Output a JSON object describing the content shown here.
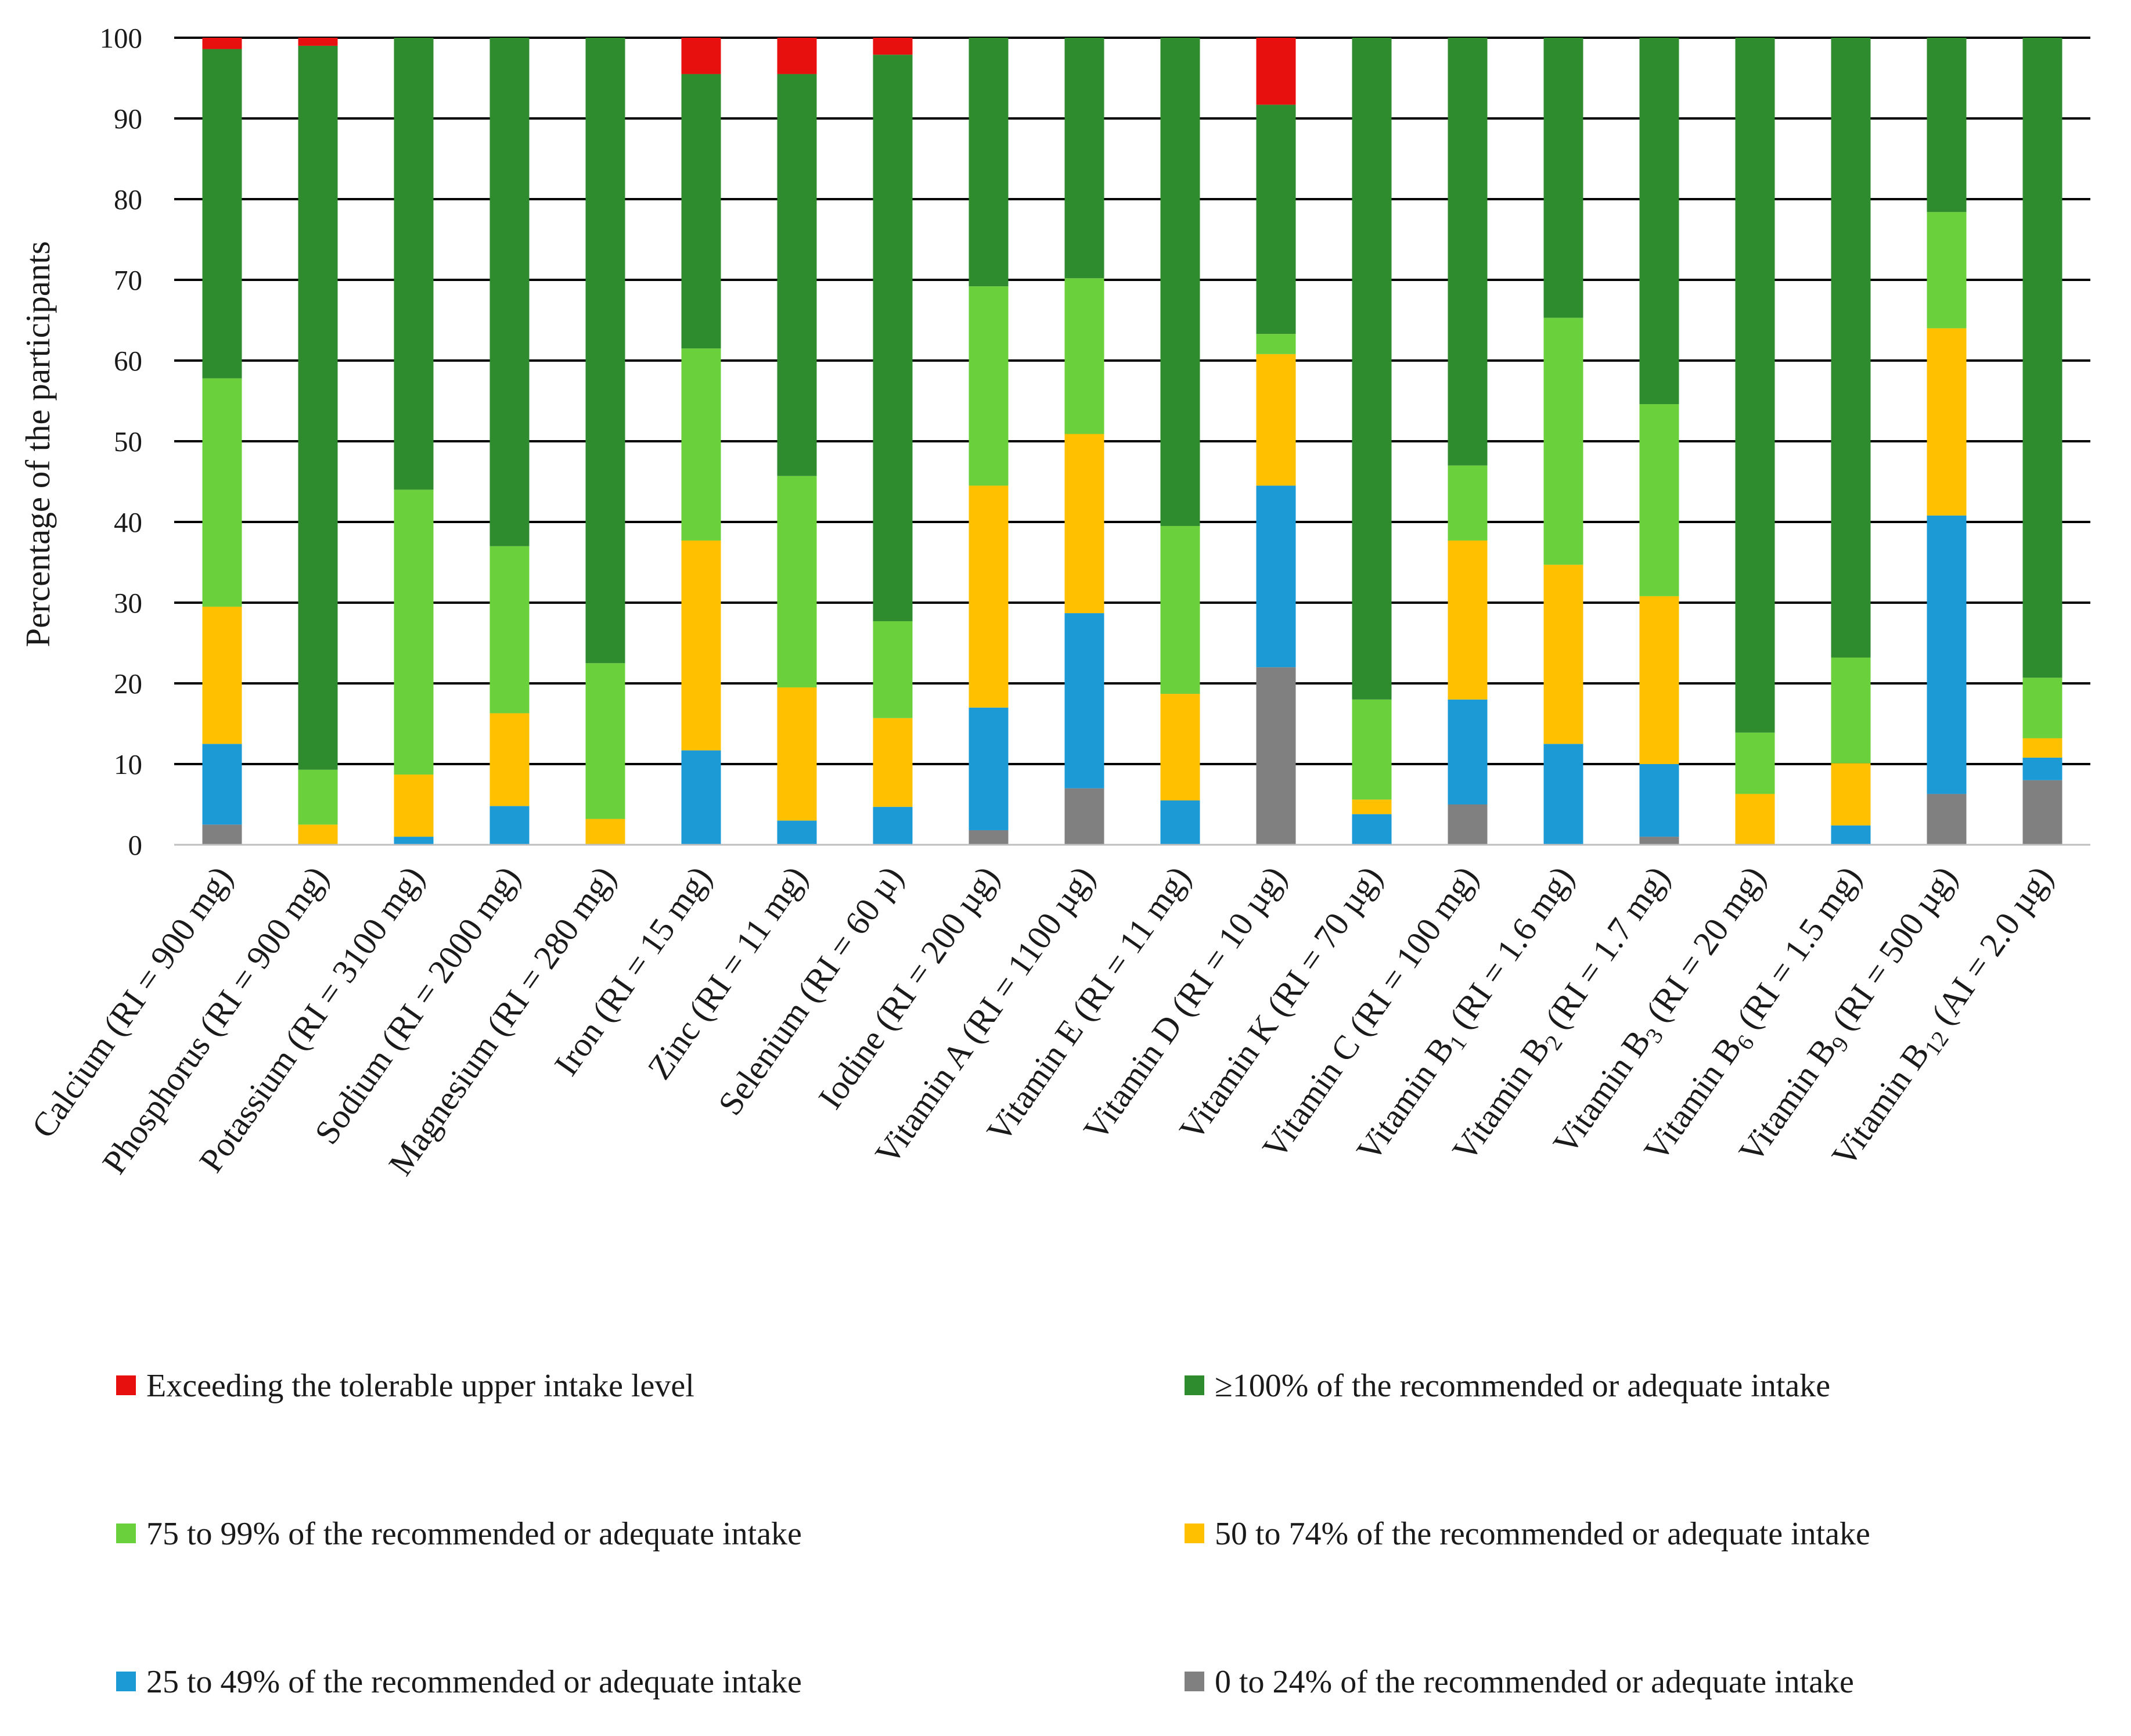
{
  "chart_data": {
    "type": "bar",
    "stacked": true,
    "title": "",
    "xlabel": "",
    "ylabel": "Percentage of the participants",
    "ylim": [
      0,
      100
    ],
    "yticks": [
      0,
      10,
      20,
      30,
      40,
      50,
      60,
      70,
      80,
      90,
      100
    ],
    "grid": true,
    "legend_position": "bottom",
    "categories": [
      {
        "pre": "Calcium (RI = 900 mg)",
        "sub": "",
        "post": ""
      },
      {
        "pre": "Phosphorus (RI = 900 mg)",
        "sub": "",
        "post": ""
      },
      {
        "pre": "Potassium (RI = 3100 mg)",
        "sub": "",
        "post": ""
      },
      {
        "pre": "Sodium (RI = 2000 mg)",
        "sub": "",
        "post": ""
      },
      {
        "pre": "Magnesium (RI = 280 mg)",
        "sub": "",
        "post": ""
      },
      {
        "pre": "Iron (RI = 15 mg)",
        "sub": "",
        "post": ""
      },
      {
        "pre": "Zinc (RI = 11 mg)",
        "sub": "",
        "post": ""
      },
      {
        "pre": "Selenium (RI = 60 µ)",
        "sub": "",
        "post": ""
      },
      {
        "pre": "Iodine (RI = 200 µg)",
        "sub": "",
        "post": ""
      },
      {
        "pre": "Vitamin A (RI = 1100 µg)",
        "sub": "",
        "post": ""
      },
      {
        "pre": "Vitamin E (RI = 11 mg)",
        "sub": "",
        "post": ""
      },
      {
        "pre": "Vitamin D (RI = 10 µg)",
        "sub": "",
        "post": ""
      },
      {
        "pre": "Vitamin K (RI = 70 µg)",
        "sub": "",
        "post": ""
      },
      {
        "pre": "Vitamin C (RI = 100 mg)",
        "sub": "",
        "post": ""
      },
      {
        "pre": "Vitamin B",
        "sub": "1",
        "post": " (RI = 1.6 mg)"
      },
      {
        "pre": "Vitamin B",
        "sub": "2",
        "post": " (RI = 1.7 mg)"
      },
      {
        "pre": "Vitamin B",
        "sub": "3",
        "post": " (RI = 20 mg)"
      },
      {
        "pre": "Vitamin B",
        "sub": "6",
        "post": " (RI = 1.5 mg)"
      },
      {
        "pre": "Vitamin B",
        "sub": "9",
        "post": " (RI = 500 µg)"
      },
      {
        "pre": "Vitamin B",
        "sub": "12",
        "post": " (AI = 2.0 µg)"
      }
    ],
    "series": [
      {
        "name": "0 to 24% of the recommended or adequate intake",
        "color": "#808080",
        "values": [
          2.5,
          0,
          0,
          0,
          0,
          0,
          0,
          0,
          1.8,
          7,
          0,
          22,
          0,
          5,
          0,
          1,
          0,
          0,
          6.3,
          8
        ]
      },
      {
        "name": "25 to 49% of the recommended or adequate intake",
        "color": "#1b9ad6",
        "values": [
          10,
          0,
          1,
          4.8,
          0,
          11.7,
          3,
          4.7,
          15.2,
          21.7,
          5.5,
          22.5,
          3.8,
          13,
          12.5,
          9,
          0,
          2.4,
          34.5,
          2.8
        ]
      },
      {
        "name": "50 to 74% of the recommended or adequate intake",
        "color": "#ffc000",
        "values": [
          17,
          2.5,
          7.7,
          11.5,
          3.2,
          26,
          16.5,
          11,
          27.5,
          22.2,
          13.2,
          16.3,
          1.8,
          19.7,
          22.2,
          20.8,
          6.3,
          7.7,
          23.2,
          2.4
        ]
      },
      {
        "name": "75 to 99% of the recommended or adequate intake",
        "color": "#6ad03c",
        "values": [
          28.3,
          6.8,
          35.3,
          20.7,
          19.3,
          23.8,
          26.2,
          12,
          24.7,
          19.3,
          20.8,
          2.5,
          12.4,
          9.3,
          30.6,
          23.8,
          7.6,
          13.1,
          14.4,
          7.5
        ]
      },
      {
        "name": "≥100% of the recommended or adequate intake",
        "color": "#2e8b2e",
        "values": [
          40.8,
          89.7,
          56,
          63,
          77.5,
          34,
          49.8,
          70.2,
          30.8,
          29.8,
          60.5,
          28.4,
          82,
          53,
          34.7,
          45.4,
          86.1,
          76.8,
          21.6,
          79.3
        ]
      },
      {
        "name": "Exceeding the tolerable upper intake level",
        "color": "#e8100f",
        "values": [
          1.4,
          1,
          0,
          0,
          0,
          4.5,
          4.5,
          2.1,
          0,
          0,
          0,
          8.3,
          0,
          0,
          0,
          0,
          0,
          0,
          0,
          0
        ]
      }
    ],
    "legend_order": [
      5,
      4,
      3,
      2,
      1,
      0
    ]
  }
}
